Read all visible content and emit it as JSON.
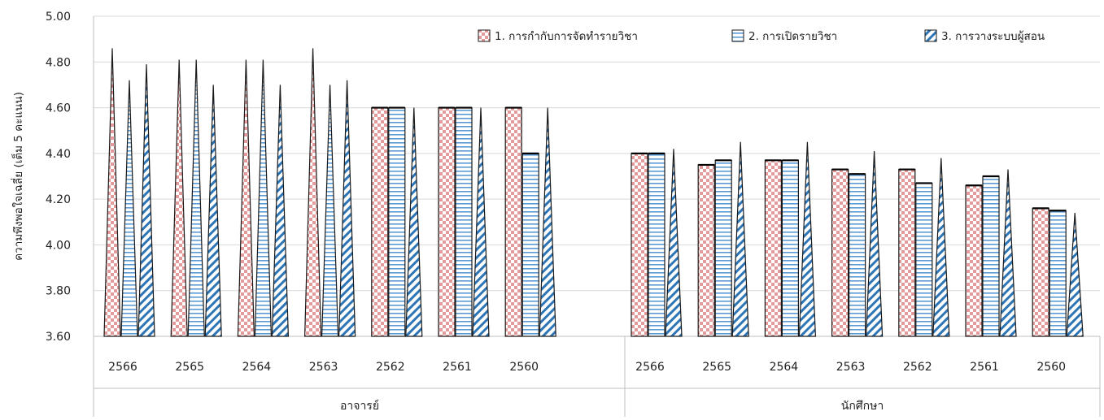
{
  "chart_data": {
    "type": "bar",
    "ylabel": "ความพึงพอใจเฉลี่ย (เต็ม 5 คะแนน)",
    "ylim": [
      3.6,
      5.0
    ],
    "yticks": [
      "3.60",
      "3.80",
      "4.00",
      "4.20",
      "4.40",
      "4.60",
      "4.80",
      "5.00"
    ],
    "grid": true,
    "legend_position": "top-right",
    "groups": [
      {
        "label": "อาจารย์",
        "categories": [
          "2566",
          "2565",
          "2564",
          "2563",
          "2562",
          "2561",
          "2560"
        ]
      },
      {
        "label": "นักศึกษา",
        "categories": [
          "2566",
          "2565",
          "2564",
          "2563",
          "2562",
          "2561",
          "2560"
        ]
      }
    ],
    "series": [
      {
        "name": "1. การกำกับการจัดทำรายวิชา",
        "pattern": "checker",
        "color": "#e8a0a0",
        "values": [
          4.86,
          4.81,
          4.81,
          4.86,
          4.6,
          4.6,
          4.6,
          4.4,
          4.35,
          4.37,
          4.33,
          4.33,
          4.26,
          4.16
        ]
      },
      {
        "name": "2.  การเปิดรายวิชา",
        "pattern": "horizontal",
        "color": "#5b9bd5",
        "values": [
          4.72,
          4.81,
          4.81,
          4.7,
          4.6,
          4.6,
          4.4,
          4.4,
          4.37,
          4.37,
          4.31,
          4.27,
          4.3,
          4.15
        ]
      },
      {
        "name": "3. การวางระบบผู้สอน",
        "pattern": "diagonal",
        "color": "#2e75b6",
        "values": [
          4.79,
          4.7,
          4.7,
          4.72,
          4.6,
          4.6,
          4.6,
          4.42,
          4.45,
          4.45,
          4.41,
          4.38,
          4.33,
          4.14
        ]
      }
    ]
  }
}
